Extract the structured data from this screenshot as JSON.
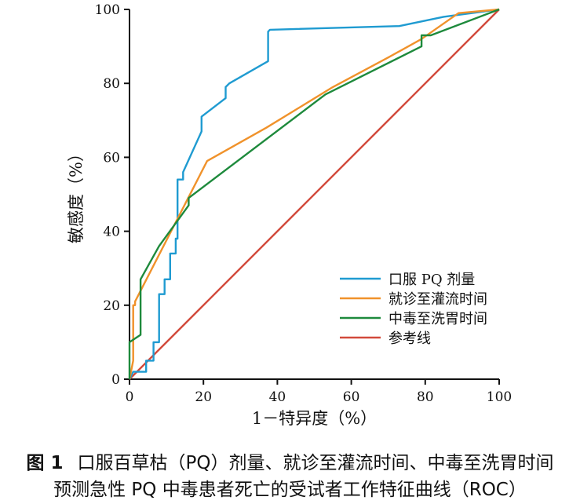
{
  "chart_data": {
    "type": "line",
    "xlabel": "1－特异度（%）",
    "ylabel": "敏感度（%）",
    "xlim": [
      0,
      100
    ],
    "ylim": [
      0,
      100
    ],
    "xticks": [
      "0",
      "20",
      "40",
      "60",
      "80",
      "100"
    ],
    "yticks": [
      "0",
      "20",
      "40",
      "60",
      "80",
      "100"
    ],
    "grid": false,
    "legend_position": "bottom-right",
    "series": [
      {
        "name": "口服 PQ 剂量",
        "color": "#1f9bd1",
        "x": [
          0,
          1,
          4.5,
          4.5,
          6.5,
          6.5,
          8,
          8,
          9.5,
          9.5,
          11,
          11,
          12.5,
          12.5,
          13,
          13,
          14.5,
          14.5,
          19.5,
          19.5,
          26,
          26,
          27,
          37.5,
          37.5,
          38,
          73,
          85,
          100
        ],
        "y": [
          0,
          2,
          2,
          5,
          5,
          10,
          10,
          23,
          23,
          27,
          27,
          34,
          34,
          38,
          38,
          54,
          54,
          56,
          67,
          71,
          76,
          79,
          80,
          86,
          94,
          94.5,
          95.5,
          98,
          100
        ]
      },
      {
        "name": "就诊至灌流时间",
        "color": "#f0922b",
        "x": [
          0,
          1,
          1,
          1.5,
          1.5,
          21,
          37,
          55,
          70,
          79,
          89,
          100
        ],
        "y": [
          0,
          5,
          20,
          20,
          21,
          59,
          68,
          79,
          87,
          92,
          99,
          100
        ]
      },
      {
        "name": "中毒至洗胃时间",
        "color": "#1e8a3c",
        "x": [
          0,
          0,
          3,
          3,
          8,
          16,
          16,
          53,
          79,
          79,
          80,
          81.5,
          100
        ],
        "y": [
          0,
          10,
          12,
          27,
          36,
          47,
          49,
          77,
          90,
          93,
          93,
          93,
          100
        ]
      },
      {
        "name": "参考线",
        "color": "#d24a3c",
        "x": [
          0,
          100
        ],
        "y": [
          0,
          100
        ]
      }
    ]
  },
  "caption": {
    "label": "图 1",
    "line1": "口服百草枯（PQ）剂量、就诊至灌流时间、中毒至洗胃时间",
    "line2": "预测急性 PQ 中毒患者死亡的受试者工作特征曲线（ROC）"
  }
}
